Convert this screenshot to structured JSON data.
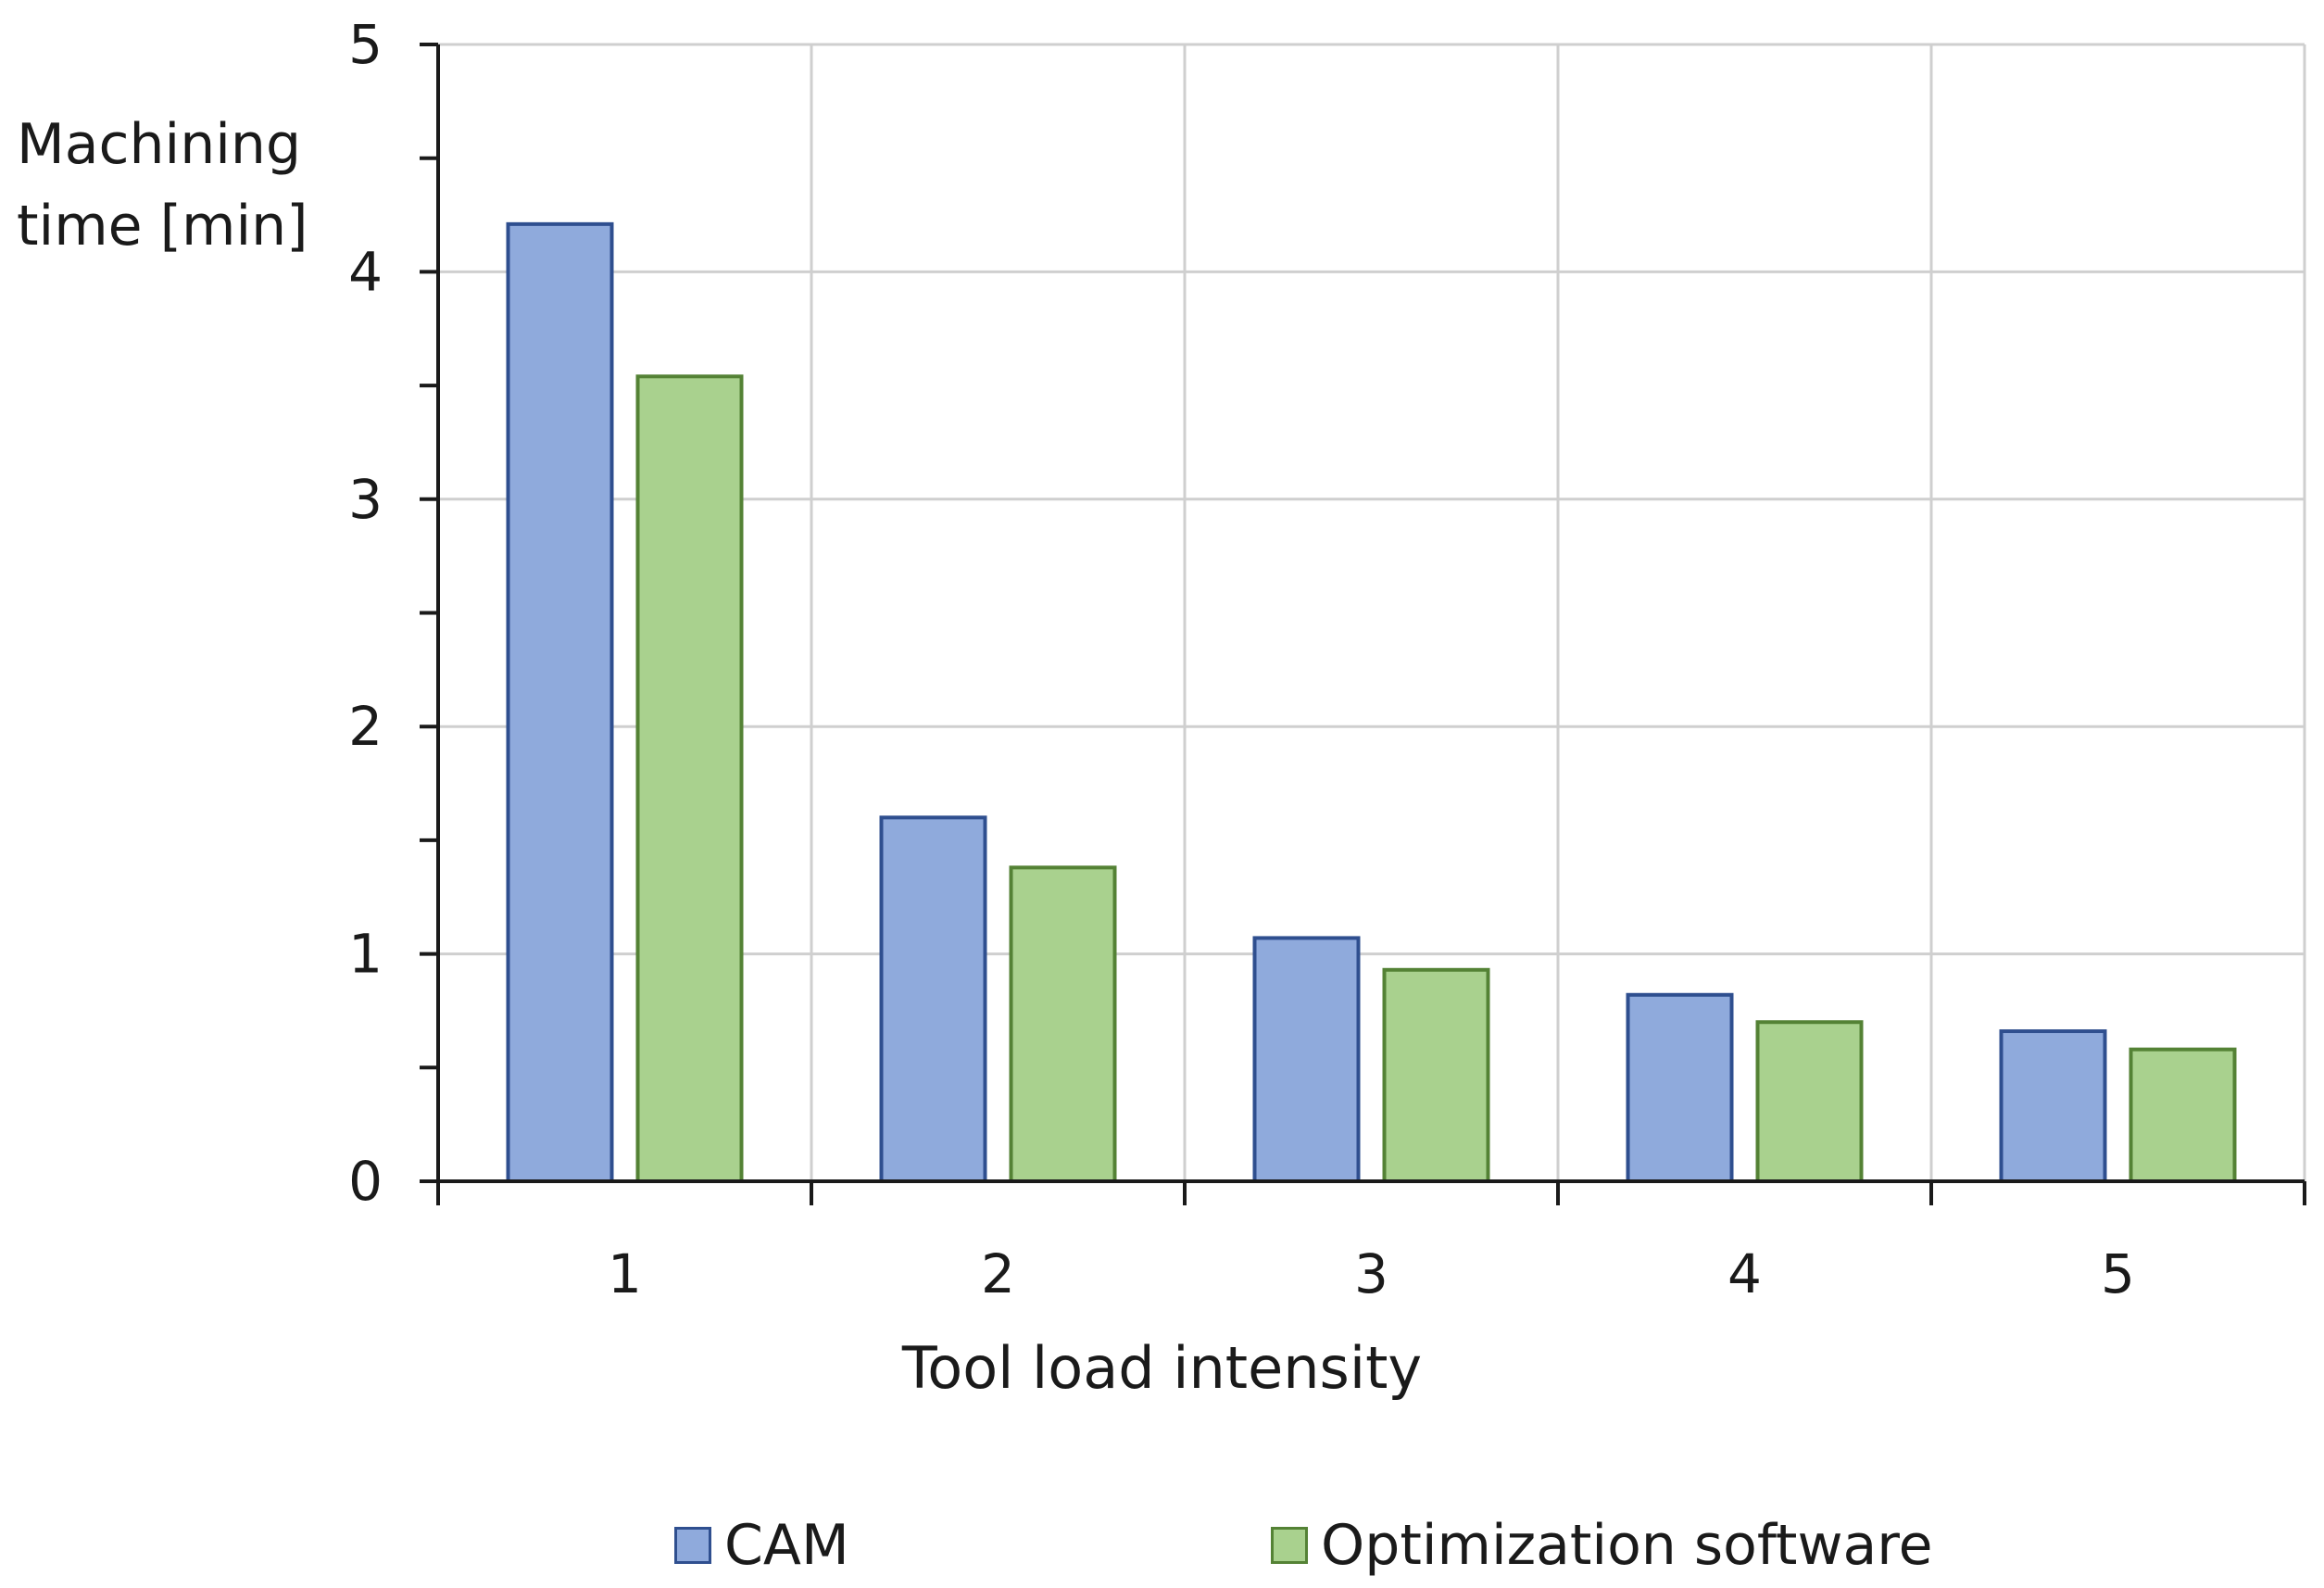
{
  "chart_data": {
    "type": "bar",
    "title": "",
    "xlabel": "Tool load intensity",
    "ylabel_lines": [
      "Machining",
      "time [min]"
    ],
    "categories": [
      "1",
      "2",
      "3",
      "4",
      "5"
    ],
    "series": [
      {
        "name": "CAM",
        "values": [
          4.21,
          1.6,
          1.07,
          0.82,
          0.66
        ],
        "fill": "#8faadc",
        "stroke": "#2f4f8f"
      },
      {
        "name": "Optimization software",
        "values": [
          3.54,
          1.38,
          0.93,
          0.7,
          0.58
        ],
        "fill": "#a9d18e",
        "stroke": "#548235"
      }
    ],
    "ylim": [
      0,
      5
    ],
    "yticks": [
      "0",
      "1",
      "2",
      "3",
      "4",
      "5"
    ],
    "grid": true,
    "legend_position": "bottom"
  }
}
